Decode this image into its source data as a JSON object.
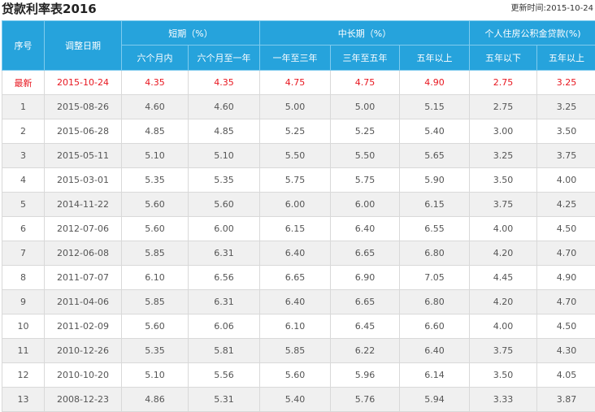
{
  "page": {
    "title": "贷款利率表2016",
    "update_label": "更新时间:",
    "update_date": "2015-10-24"
  },
  "table": {
    "headers": {
      "index": "序号",
      "date": "调整日期",
      "short_group": "短期（%）",
      "mid_group": "中长期（%）",
      "fund_group": "个人住房公积金贷款(%)",
      "sub": [
        "六个月内",
        "六个月至一年",
        "一年至三年",
        "三年至五年",
        "五年以上",
        "五年以下",
        "五年以上"
      ]
    },
    "rows": [
      {
        "index": "最新",
        "date": "2015-10-24",
        "values": [
          "4.35",
          "4.35",
          "4.75",
          "4.75",
          "4.90",
          "2.75",
          "3.25"
        ]
      },
      {
        "index": "1",
        "date": "2015-08-26",
        "values": [
          "4.60",
          "4.60",
          "5.00",
          "5.00",
          "5.15",
          "2.75",
          "3.25"
        ]
      },
      {
        "index": "2",
        "date": "2015-06-28",
        "values": [
          "4.85",
          "4.85",
          "5.25",
          "5.25",
          "5.40",
          "3.00",
          "3.50"
        ]
      },
      {
        "index": "3",
        "date": "2015-05-11",
        "values": [
          "5.10",
          "5.10",
          "5.50",
          "5.50",
          "5.65",
          "3.25",
          "3.75"
        ]
      },
      {
        "index": "4",
        "date": "2015-03-01",
        "values": [
          "5.35",
          "5.35",
          "5.75",
          "5.75",
          "5.90",
          "3.50",
          "4.00"
        ]
      },
      {
        "index": "5",
        "date": "2014-11-22",
        "values": [
          "5.60",
          "5.60",
          "6.00",
          "6.00",
          "6.15",
          "3.75",
          "4.25"
        ]
      },
      {
        "index": "6",
        "date": "2012-07-06",
        "values": [
          "5.60",
          "6.00",
          "6.15",
          "6.40",
          "6.55",
          "4.00",
          "4.50"
        ]
      },
      {
        "index": "7",
        "date": "2012-06-08",
        "values": [
          "5.85",
          "6.31",
          "6.40",
          "6.65",
          "6.80",
          "4.20",
          "4.70"
        ]
      },
      {
        "index": "8",
        "date": "2011-07-07",
        "values": [
          "6.10",
          "6.56",
          "6.65",
          "6.90",
          "7.05",
          "4.45",
          "4.90"
        ]
      },
      {
        "index": "9",
        "date": "2011-04-06",
        "values": [
          "5.85",
          "6.31",
          "6.40",
          "6.65",
          "6.80",
          "4.20",
          "4.70"
        ]
      },
      {
        "index": "10",
        "date": "2011-02-09",
        "values": [
          "5.60",
          "6.06",
          "6.10",
          "6.45",
          "6.60",
          "4.00",
          "4.50"
        ]
      },
      {
        "index": "11",
        "date": "2010-12-26",
        "values": [
          "5.35",
          "5.81",
          "5.85",
          "6.22",
          "6.40",
          "3.75",
          "4.30"
        ]
      },
      {
        "index": "12",
        "date": "2010-10-20",
        "values": [
          "5.10",
          "5.56",
          "5.60",
          "5.96",
          "6.14",
          "3.50",
          "4.05"
        ]
      },
      {
        "index": "13",
        "date": "2008-12-23",
        "values": [
          "4.86",
          "5.31",
          "5.40",
          "5.76",
          "5.94",
          "3.33",
          "3.87"
        ]
      }
    ]
  }
}
